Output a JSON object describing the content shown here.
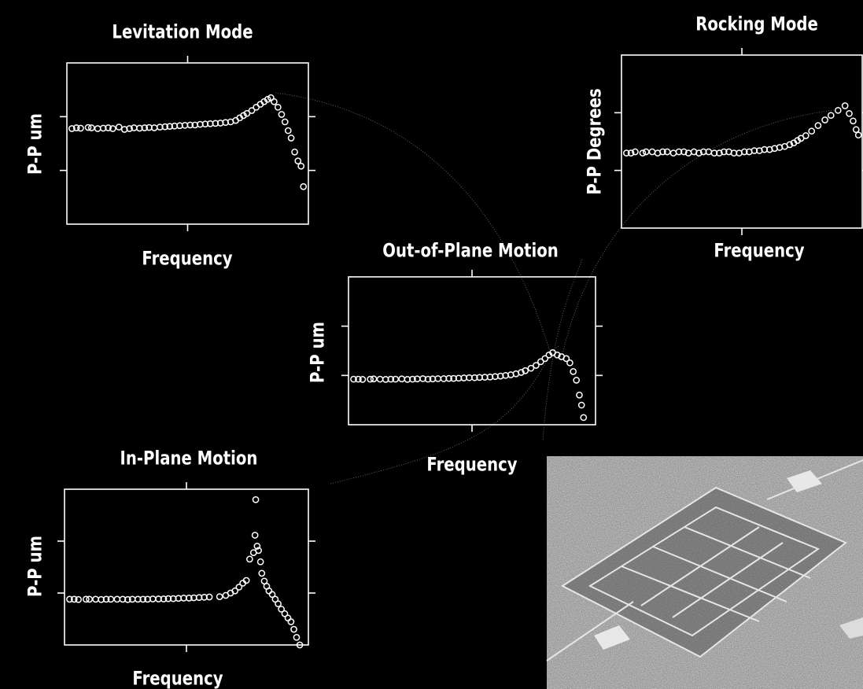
{
  "chart_data": [
    {
      "type": "scatter",
      "title": "Levitation Mode",
      "xlabel": "Frequency",
      "ylabel": "P-P um",
      "log_x": true,
      "log_y": true,
      "color": "#ffffff",
      "xlim": [
        1,
        100
      ],
      "ylim": [
        1,
        1000
      ],
      "xticks": [
        10
      ],
      "yticks": [
        10,
        100
      ],
      "x": [
        1.1,
        1.2,
        1.3,
        1.5,
        1.6,
        1.8,
        2,
        2.2,
        2.4,
        2.7,
        3,
        3.3,
        3.6,
        4,
        4.4,
        4.8,
        5.3,
        5.9,
        6.5,
        7.1,
        7.8,
        8.6,
        9.5,
        10.5,
        11.5,
        12.7,
        14,
        15.4,
        17,
        18.7,
        20.6,
        22.7,
        25,
        27,
        29,
        31,
        34,
        37,
        40,
        43,
        46,
        49,
        52,
        56,
        60,
        64,
        68,
        72,
        77,
        82,
        87,
        91
      ],
      "values": [
        60,
        62,
        61,
        63,
        62,
        60,
        61,
        62,
        60,
        64,
        58,
        60,
        62,
        61,
        62,
        63,
        62,
        64,
        65,
        66,
        67,
        68,
        69,
        70,
        70,
        72,
        73,
        74,
        75,
        76,
        78,
        80,
        85,
        95,
        105,
        115,
        130,
        150,
        170,
        190,
        210,
        225,
        190,
        150,
        110,
        80,
        55,
        40,
        22,
        15,
        12,
        5
      ]
    },
    {
      "type": "scatter",
      "title": "Rocking Mode",
      "xlabel": "Frequency",
      "ylabel": "P-P Degrees",
      "log_x": true,
      "log_y": true,
      "color": "#ffffff",
      "xlim": [
        1,
        100
      ],
      "ylim": [
        1,
        1000
      ],
      "xticks": [
        10
      ],
      "yticks": [
        10,
        100
      ],
      "x": [
        1.1,
        1.2,
        1.3,
        1.5,
        1.6,
        1.8,
        2,
        2.2,
        2.4,
        2.7,
        3,
        3.3,
        3.6,
        4,
        4.4,
        4.8,
        5.3,
        5.9,
        6.5,
        7.1,
        7.8,
        8.6,
        9.5,
        10.5,
        11.5,
        12.7,
        14,
        15.4,
        17,
        18.7,
        20.6,
        22.7,
        25,
        27,
        29,
        31,
        34,
        38,
        43,
        49,
        55,
        63,
        72,
        78,
        84,
        89,
        93
      ],
      "values": [
        20,
        20,
        21,
        20,
        21,
        21,
        20,
        21,
        21,
        20,
        21,
        21,
        20,
        21,
        20,
        21,
        21,
        20,
        20,
        21,
        21,
        20,
        20,
        21,
        21,
        22,
        22,
        23,
        23,
        24,
        25,
        26,
        28,
        30,
        33,
        36,
        40,
        48,
        60,
        75,
        90,
        110,
        132,
        97,
        72,
        51,
        41
      ]
    },
    {
      "type": "scatter",
      "title": "Out-of-Plane Motion",
      "xlabel": "Frequency",
      "ylabel": "P-P um",
      "log_x": true,
      "log_y": true,
      "color": "#ffffff",
      "xlim": [
        1,
        100
      ],
      "ylim": [
        1,
        1000
      ],
      "xticks": [
        10
      ],
      "yticks": [
        10,
        100
      ],
      "x": [
        1.1,
        1.2,
        1.3,
        1.5,
        1.6,
        1.8,
        2,
        2.2,
        2.4,
        2.7,
        3,
        3.3,
        3.6,
        4,
        4.4,
        4.8,
        5.3,
        5.9,
        6.5,
        7.1,
        7.8,
        8.6,
        9.5,
        10.5,
        11.5,
        12.7,
        14,
        15.4,
        17,
        18.7,
        20.6,
        22.7,
        25,
        27,
        30,
        33,
        36,
        39,
        42,
        45,
        49,
        53,
        58,
        62,
        66,
        70,
        74,
        77,
        80
      ],
      "values": [
        8.4,
        8.4,
        8.3,
        8.4,
        8.5,
        8.4,
        8.3,
        8.4,
        8.4,
        8.5,
        8.3,
        8.4,
        8.5,
        8.6,
        8.4,
        8.5,
        8.6,
        8.6,
        8.7,
        8.7,
        8.8,
        8.9,
        9,
        9,
        9.1,
        9.2,
        9.3,
        9.5,
        9.7,
        10,
        10.3,
        10.8,
        11.5,
        12.5,
        14,
        16,
        19,
        22,
        26,
        29,
        26,
        24,
        22,
        18,
        12,
        8,
        4,
        2.5,
        1.4
      ]
    },
    {
      "type": "scatter",
      "title": "In-Plane Motion",
      "xlabel": "Frequency",
      "ylabel": "P-P um",
      "log_x": true,
      "log_y": true,
      "color": "#ffffff",
      "xlim": [
        1,
        100
      ],
      "ylim": [
        1,
        1000
      ],
      "xticks": [
        10
      ],
      "yticks": [
        10,
        100
      ],
      "x": [
        1.1,
        1.2,
        1.3,
        1.5,
        1.6,
        1.8,
        2,
        2.2,
        2.4,
        2.7,
        3,
        3.3,
        3.6,
        4,
        4.4,
        4.8,
        5.3,
        5.9,
        6.5,
        7.1,
        7.8,
        8.6,
        9.5,
        10.5,
        11.5,
        12.7,
        14,
        15.4,
        18.7,
        21,
        23,
        25,
        27,
        29,
        31,
        33,
        35.5,
        36.5,
        37,
        38,
        39,
        40.5,
        41.5,
        43.5,
        45.5,
        47.5,
        50.5,
        53.5,
        56.5,
        60,
        64,
        68,
        72,
        76,
        80,
        85
      ],
      "values": [
        7.6,
        7.6,
        7.5,
        7.6,
        7.6,
        7.6,
        7.5,
        7.6,
        7.6,
        7.6,
        7.6,
        7.5,
        7.6,
        7.6,
        7.6,
        7.6,
        7.7,
        7.7,
        7.7,
        7.8,
        7.8,
        7.9,
        8,
        8,
        8.1,
        8.2,
        8.3,
        8.4,
        8.5,
        9,
        10,
        11,
        13,
        15.5,
        17.5,
        45,
        60,
        130,
        630,
        80,
        66,
        40,
        24,
        17,
        13.5,
        11,
        9.4,
        7.6,
        6.2,
        4.9,
        4,
        3.3,
        2.8,
        2,
        1.4,
        1
      ]
    }
  ]
}
